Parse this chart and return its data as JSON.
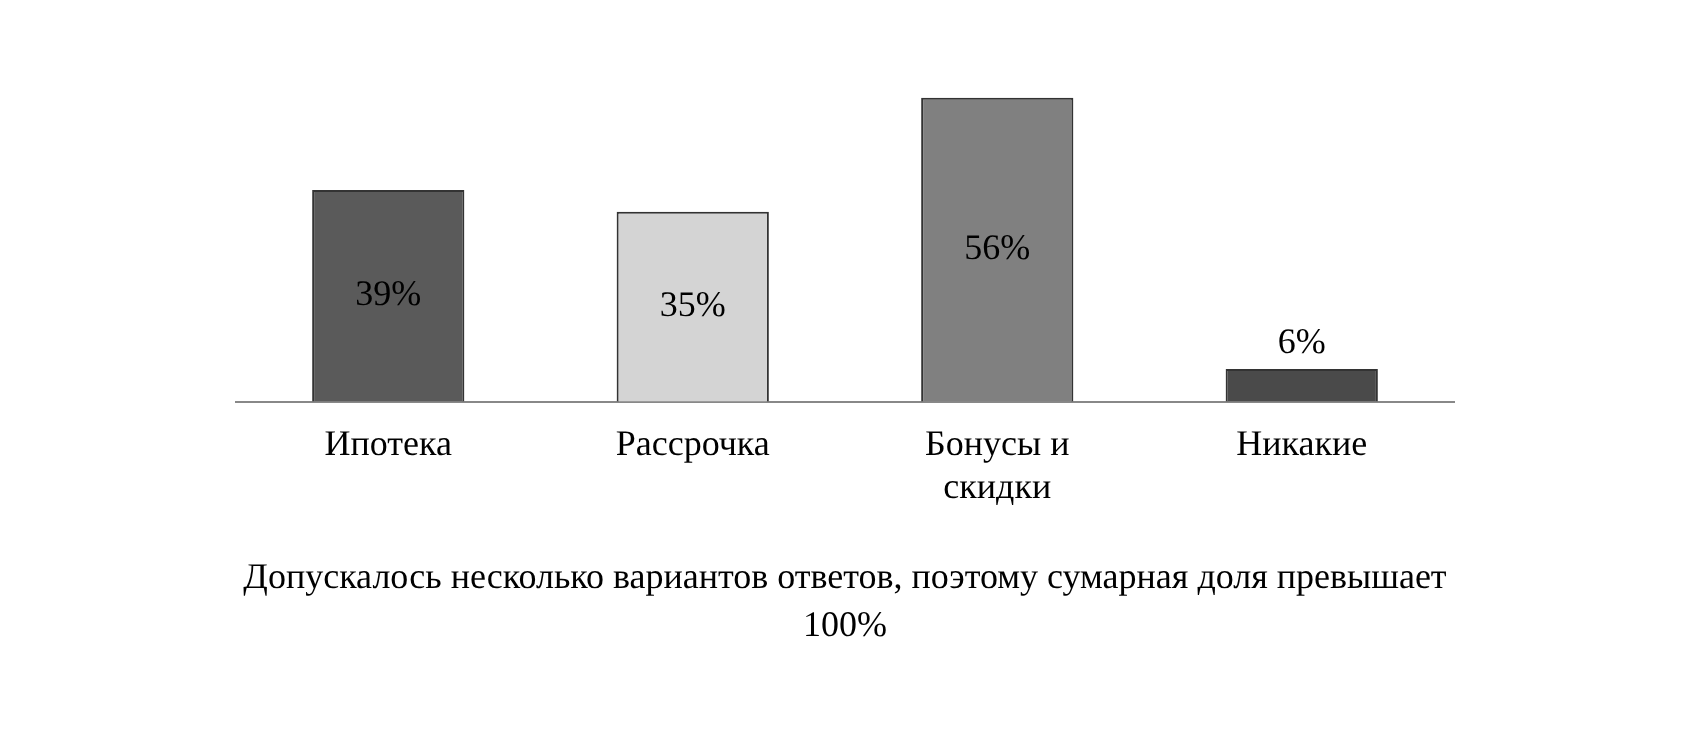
{
  "chart_data": {
    "type": "bar",
    "categories": [
      "Ипотека",
      "Рассрочка",
      "Бонусы и скидки",
      "Никакие"
    ],
    "values": [
      39,
      35,
      56,
      6
    ],
    "colors": [
      "#5a5a5a",
      "#d4d4d4",
      "#808080",
      "#4a4a4a"
    ],
    "value_labels": [
      "39%",
      "35%",
      "56%",
      "6%"
    ],
    "annotations": [
      "Допускалось несколько вариантов ответов, поэтому сумарная доля превышает 100%"
    ]
  }
}
